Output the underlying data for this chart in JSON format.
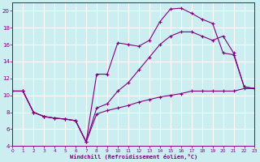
{
  "xlabel": "Windchill (Refroidissement éolien,°C)",
  "bg_color": "#cceef0",
  "line_color": "#800080",
  "grid_color": "#ffffff",
  "xmin": 0,
  "xmax": 23,
  "ymin": 4,
  "ymax": 21,
  "yticks": [
    4,
    6,
    8,
    10,
    12,
    14,
    16,
    18,
    20
  ],
  "xticks": [
    0,
    1,
    2,
    3,
    4,
    5,
    6,
    7,
    8,
    9,
    10,
    11,
    12,
    13,
    14,
    15,
    16,
    17,
    18,
    19,
    20,
    21,
    22,
    23
  ],
  "line1_x": [
    0,
    1,
    2,
    3,
    4,
    5,
    6,
    7,
    8,
    9,
    10,
    11,
    12,
    13,
    14,
    15,
    16,
    17,
    18,
    19,
    20,
    21,
    22,
    23
  ],
  "line1_y": [
    10.5,
    10.5,
    8.0,
    7.5,
    7.3,
    7.2,
    7.0,
    4.5,
    7.8,
    8.2,
    8.5,
    8.8,
    9.2,
    9.5,
    9.8,
    10.0,
    10.2,
    10.5,
    10.5,
    10.5,
    10.5,
    10.5,
    10.8,
    10.8
  ],
  "line2_x": [
    0,
    1,
    2,
    3,
    4,
    5,
    6,
    7,
    8,
    9,
    10,
    11,
    12,
    13,
    14,
    15,
    16,
    17,
    18,
    19,
    20,
    21,
    22,
    23
  ],
  "line2_y": [
    10.5,
    10.5,
    8.0,
    7.5,
    7.3,
    7.2,
    7.0,
    4.5,
    12.5,
    12.5,
    16.2,
    16.0,
    15.8,
    16.5,
    18.7,
    20.2,
    20.3,
    19.7,
    19.0,
    18.5,
    15.0,
    14.8,
    11.0,
    10.8
  ],
  "line3_x": [
    0,
    1,
    2,
    3,
    4,
    5,
    6,
    7,
    8,
    9,
    10,
    11,
    12,
    13,
    14,
    15,
    16,
    17,
    18,
    19,
    20,
    21,
    22,
    23
  ],
  "line3_y": [
    10.5,
    10.5,
    8.0,
    7.5,
    7.3,
    7.2,
    7.0,
    4.5,
    8.5,
    9.0,
    10.5,
    11.5,
    13.0,
    14.5,
    16.0,
    17.0,
    17.5,
    17.5,
    17.0,
    16.5,
    17.0,
    15.0,
    11.0,
    10.8
  ]
}
